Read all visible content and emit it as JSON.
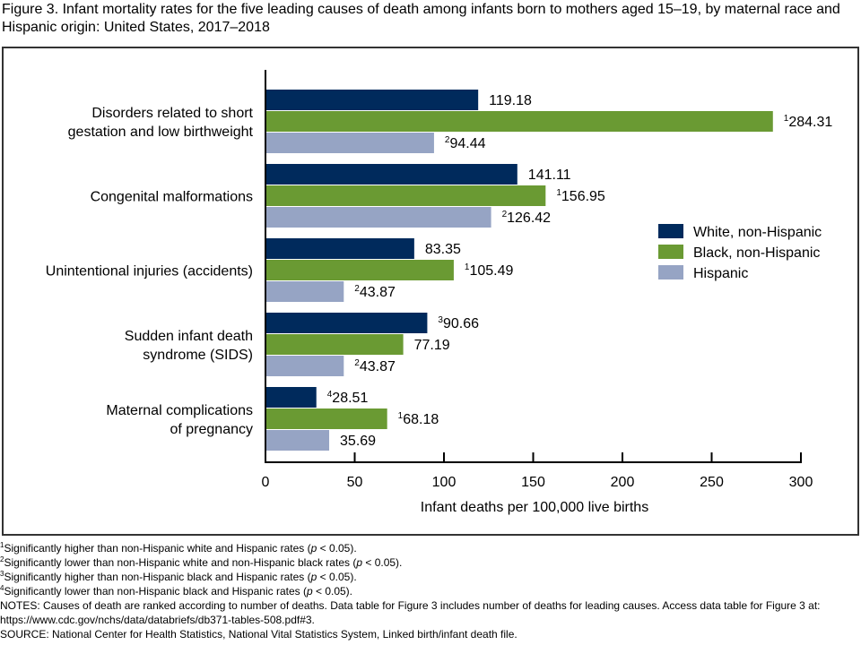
{
  "title": "Figure 3. Infant mortality rates for the five leading causes of death among infants born to mothers aged 15–19, by maternal race and Hispanic origin: United States, 2017–2018",
  "chart_data": {
    "type": "bar",
    "orientation": "horizontal",
    "title": "Infant mortality rates for the five leading causes of death among infants born to mothers aged 15–19, by maternal race and Hispanic origin: United States, 2017–2018",
    "xlabel": "Infant deaths per 100,000 live births",
    "ylabel": "",
    "xlim": [
      0,
      300
    ],
    "xticks": [
      0,
      50,
      100,
      150,
      200,
      250,
      300
    ],
    "grid": false,
    "legend_position": "right",
    "categories": [
      [
        "Disorders related to short",
        "gestation and low birthweight"
      ],
      [
        "Congenital malformations"
      ],
      [
        "Unintentional injuries (accidents)"
      ],
      [
        "Sudden infant death",
        "syndrome (SIDS)"
      ],
      [
        "Maternal complications",
        "of pregnancy"
      ]
    ],
    "series": [
      {
        "name": "White, non-Hispanic",
        "color": "#002a5c",
        "values": [
          119.18,
          141.11,
          83.35,
          90.66,
          28.51
        ],
        "labels": [
          "119.18",
          "141.11",
          "83.35",
          "90.66",
          "28.51"
        ],
        "footnotes": [
          "",
          "",
          "",
          "3",
          "4"
        ]
      },
      {
        "name": "Black, non-Hispanic",
        "color": "#6a9a33",
        "values": [
          284.31,
          156.95,
          105.49,
          77.19,
          68.18
        ],
        "labels": [
          "284.31",
          "156.95",
          "105.49",
          "77.19",
          "68.18"
        ],
        "footnotes": [
          "1",
          "1",
          "1",
          "",
          "1"
        ]
      },
      {
        "name": "Hispanic",
        "color": "#96a4c4",
        "values": [
          94.44,
          126.42,
          43.87,
          43.87,
          35.69
        ],
        "labels": [
          "94.44",
          "126.42",
          "43.87",
          "43.87",
          "35.69"
        ],
        "footnotes": [
          "2",
          "2",
          "2",
          "2",
          ""
        ]
      }
    ]
  },
  "notes": {
    "footnotes": [
      {
        "mark": "1",
        "text": "Significantly higher than non-Hispanic white and Hispanic rates (",
        "p": "p",
        "tail": " < 0.05)."
      },
      {
        "mark": "2",
        "text": "Significantly lower than non-Hispanic white and non-Hispanic black rates (",
        "p": "p",
        "tail": " < 0.05)."
      },
      {
        "mark": "3",
        "text": "Significantly higher than non-Hispanic black and Hispanic rates (",
        "p": "p",
        "tail": " < 0.05)."
      },
      {
        "mark": "4",
        "text": "Significantly lower than non-Hispanic black and Hispanic rates (",
        "p": "p",
        "tail": " < 0.05)."
      }
    ],
    "notes_text": "NOTES: Causes of death are ranked according to number of deaths. Data table for Figure 3 includes number of deaths for leading causes. Access data table for Figure 3 at: https://www.cdc.gov/nchs/data/databriefs/db371-tables-508.pdf#3.",
    "source_text": "SOURCE: National Center for Health Statistics, National Vital Statistics System, Linked birth/infant death file."
  }
}
